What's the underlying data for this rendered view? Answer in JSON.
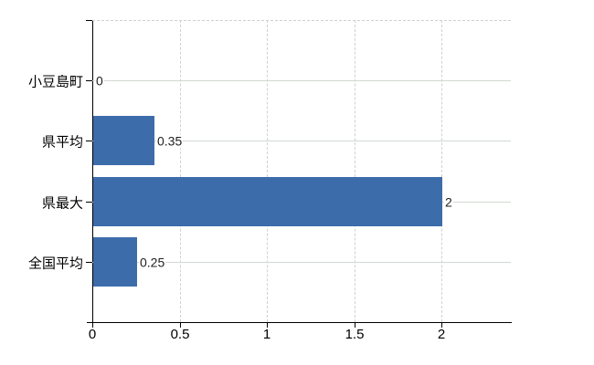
{
  "chart_data": {
    "type": "bar",
    "orientation": "horizontal",
    "title": "",
    "xlabel": "",
    "ylabel": "",
    "categories": [
      "小豆島町",
      "県平均",
      "県最大",
      "全国平均"
    ],
    "values": [
      0,
      0.35,
      2,
      0.25
    ],
    "value_labels": [
      "0",
      "0.35",
      "2",
      "0.25"
    ],
    "xlim": [
      0,
      2.4
    ],
    "xticks": [
      0,
      0.5,
      1,
      1.5,
      2
    ],
    "xtick_labels": [
      "0",
      "0.5",
      "1",
      "1.5",
      "2"
    ],
    "grid": true,
    "legend": false,
    "bar_color": "#3d6cab",
    "axis_color": "#000000",
    "row_gridline_color": "#d2d9d2",
    "tick_gridline_color": "#d0d0d0",
    "background_color": "#ffffff"
  }
}
